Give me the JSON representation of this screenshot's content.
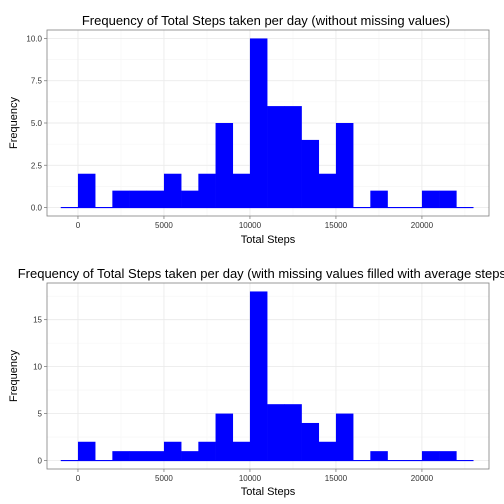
{
  "colors": {
    "bar": "#0000ff",
    "grid": "#ebebeb",
    "border": "#7f7f7f"
  },
  "chart_data": [
    {
      "type": "bar",
      "title": "Frequency of Total Steps taken per day (without missing values)",
      "xlabel": "Total Steps",
      "ylabel": "Frequency",
      "xlim": [
        -1800,
        23900
      ],
      "ylim": [
        -0.5,
        10.5
      ],
      "x_ticks": [
        {
          "value": 0,
          "label": "0"
        },
        {
          "value": 5000,
          "label": "5000"
        },
        {
          "value": 10000,
          "label": "10000"
        },
        {
          "value": 15000,
          "label": "15000"
        },
        {
          "value": 20000,
          "label": "20000"
        }
      ],
      "y_ticks": [
        {
          "value": 0,
          "label": "0.0"
        },
        {
          "value": 2.5,
          "label": "2.5"
        },
        {
          "value": 5,
          "label": "5.0"
        },
        {
          "value": 7.5,
          "label": "7.5"
        },
        {
          "value": 10,
          "label": "10.0"
        }
      ],
      "grid": true,
      "bin_width": 1000,
      "bin_starts": [
        -1000,
        0,
        1000,
        2000,
        3000,
        4000,
        5000,
        6000,
        7000,
        8000,
        9000,
        10000,
        11000,
        12000,
        13000,
        14000,
        15000,
        16000,
        17000,
        18000,
        19000,
        20000,
        21000,
        22000
      ],
      "values": [
        0,
        2,
        0,
        1,
        1,
        1,
        2,
        1,
        2,
        5,
        2,
        10,
        6,
        6,
        4,
        2,
        5,
        0,
        1,
        0,
        0,
        1,
        1,
        0
      ]
    },
    {
      "type": "bar",
      "title": "Frequency of Total Steps taken per day (with missing values filled with average steps)",
      "xlabel": "Total Steps",
      "ylabel": "Frequency",
      "xlim": [
        -1800,
        23900
      ],
      "ylim": [
        -0.9,
        18.9
      ],
      "x_ticks": [
        {
          "value": 0,
          "label": "0"
        },
        {
          "value": 5000,
          "label": "5000"
        },
        {
          "value": 10000,
          "label": "10000"
        },
        {
          "value": 15000,
          "label": "15000"
        },
        {
          "value": 20000,
          "label": "20000"
        }
      ],
      "y_ticks": [
        {
          "value": 0,
          "label": "0"
        },
        {
          "value": 5,
          "label": "5"
        },
        {
          "value": 10,
          "label": "10"
        },
        {
          "value": 15,
          "label": "15"
        }
      ],
      "grid": true,
      "bin_width": 1000,
      "bin_starts": [
        -1000,
        0,
        1000,
        2000,
        3000,
        4000,
        5000,
        6000,
        7000,
        8000,
        9000,
        10000,
        11000,
        12000,
        13000,
        14000,
        15000,
        16000,
        17000,
        18000,
        19000,
        20000,
        21000,
        22000
      ],
      "values": [
        0,
        2,
        0,
        1,
        1,
        1,
        2,
        1,
        2,
        5,
        2,
        18,
        6,
        6,
        4,
        2,
        5,
        0,
        1,
        0,
        0,
        1,
        1,
        0
      ]
    }
  ]
}
